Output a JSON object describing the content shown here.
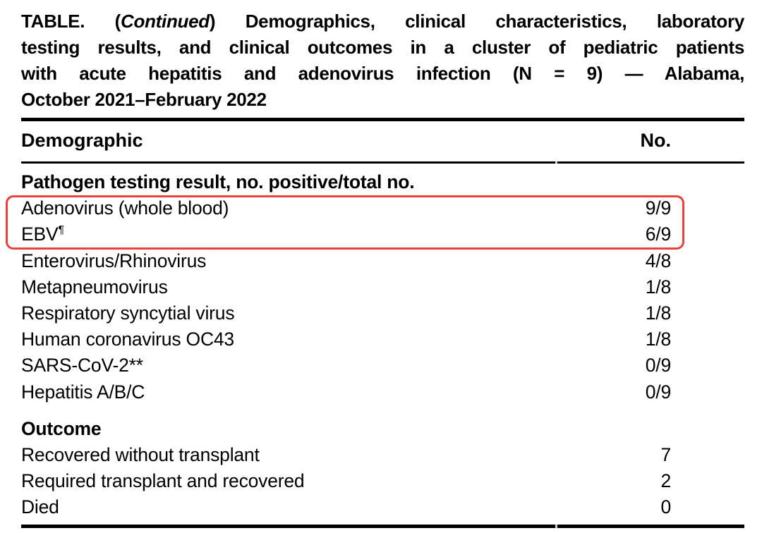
{
  "title": {
    "line1_pre": "TABLE. (",
    "line1_italic": "Continued",
    "line1_post": ") Demographics, clinical characteristics, laboratory",
    "line2": "testing results, and clinical outcomes in a cluster of pediatric patients",
    "line3": "with acute hepatitis and adenovirus infection (N = 9) — Alabama,",
    "line4": "October 2021–February 2022"
  },
  "header": {
    "demographic": "Demographic",
    "no": "No."
  },
  "pathogen_section": {
    "heading": "Pathogen testing result, no. positive/total no.",
    "rows": [
      {
        "label": "Adenovirus (whole blood)",
        "value": "9/9",
        "highlighted": true
      },
      {
        "label": "EBV",
        "sup": "¶",
        "value": "6/9",
        "highlighted": true
      },
      {
        "label": "Enterovirus/Rhinovirus",
        "value": "4/8"
      },
      {
        "label": "Metapneumovirus",
        "value": "1/8"
      },
      {
        "label": "Respiratory syncytial virus",
        "value": "1/8"
      },
      {
        "label": "Human coronavirus OC43",
        "value": "1/8"
      },
      {
        "label": "SARS-CoV-2**",
        "value": "0/9"
      },
      {
        "label": "Hepatitis A/B/C",
        "value": "0/9"
      }
    ]
  },
  "outcome_section": {
    "heading": "Outcome",
    "rows": [
      {
        "label": "Recovered without transplant",
        "value": "7"
      },
      {
        "label": "Required transplant and recovered",
        "value": "2"
      },
      {
        "label": "Died",
        "value": "0"
      }
    ]
  },
  "highlight": {
    "color": "#e9423b"
  }
}
